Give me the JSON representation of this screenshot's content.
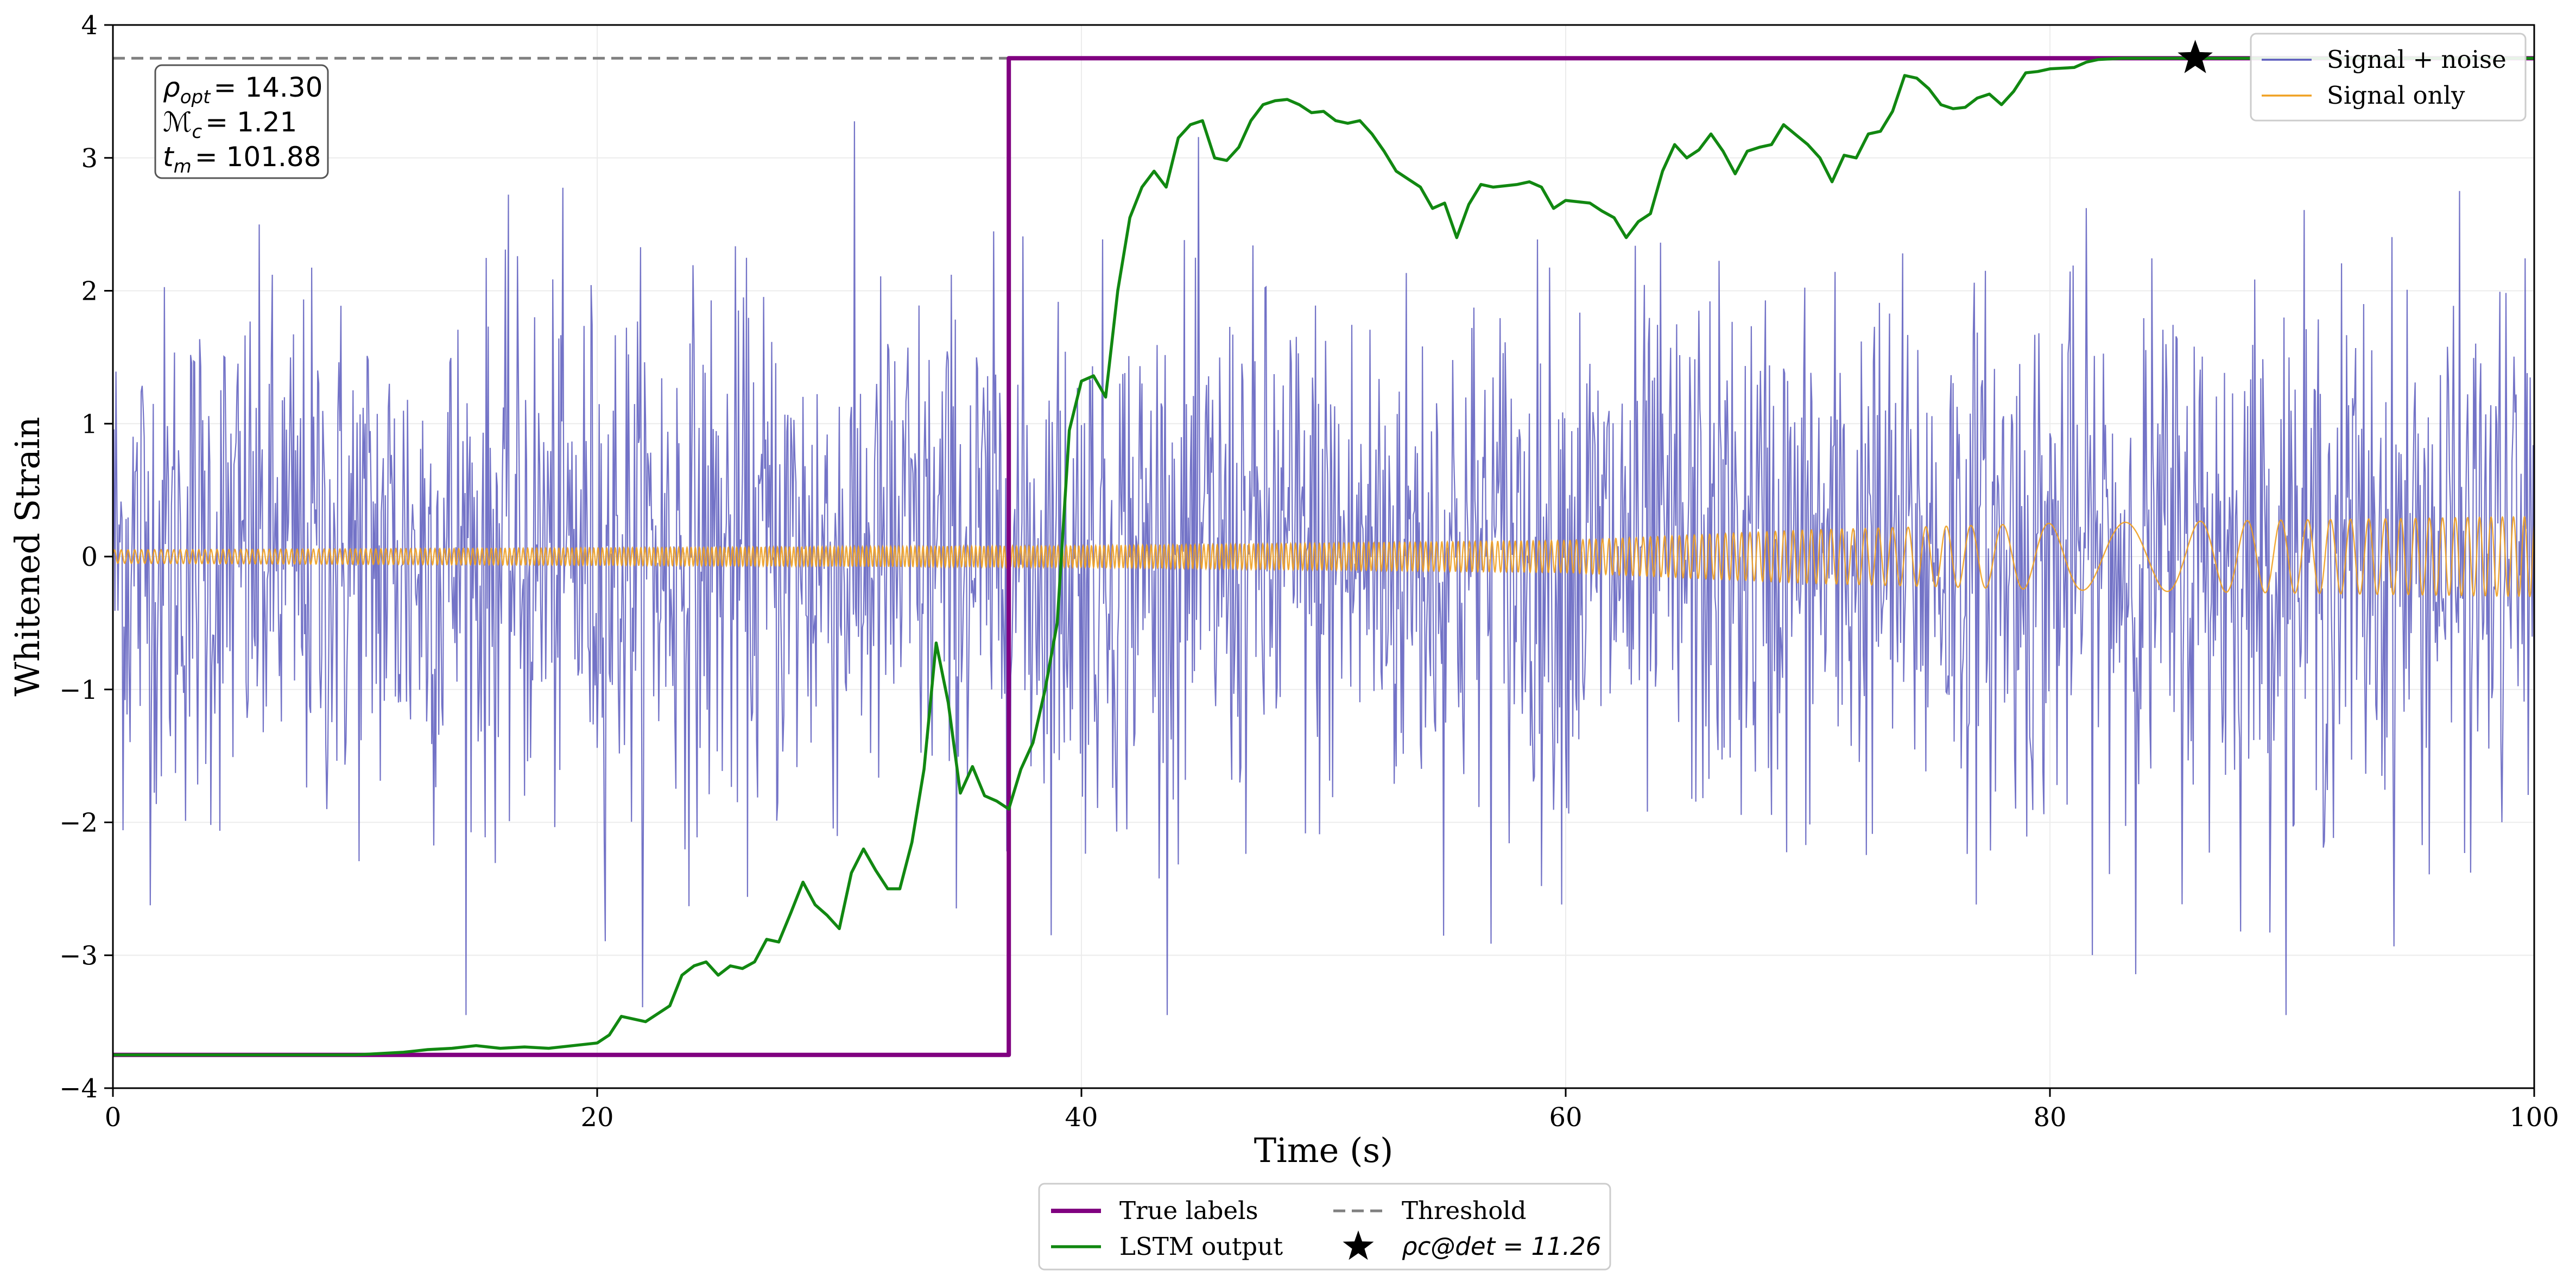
{
  "chart_data": {
    "type": "line",
    "xlabel": "Time (s)",
    "ylabel": "Whitened Strain",
    "xlim": [
      0,
      100
    ],
    "ylim": [
      -4,
      4
    ],
    "x_ticks": [
      0,
      20,
      40,
      60,
      80,
      100
    ],
    "y_ticks": [
      -4,
      -3,
      -2,
      -1,
      0,
      1,
      2,
      3,
      4
    ],
    "y_tick_labels": [
      "−4",
      "−3",
      "−2",
      "−1",
      "0",
      "1",
      "2",
      "3",
      "4"
    ],
    "grid": true,
    "legend_upper": {
      "placement": "top-right",
      "entries": [
        "Signal + noise",
        "Signal only"
      ]
    },
    "legend_lower": {
      "placement": "below-center",
      "entries": [
        "True labels",
        "LSTM output",
        "Threshold",
        "ρc@det = 11.26"
      ]
    },
    "info_box": {
      "placement": "top-left",
      "lines": [
        {
          "symbol": "ρ",
          "sub": "opt",
          "value": "= 14.30"
        },
        {
          "symbol": "ℳ",
          "sub": "c",
          "value": "= 1.21"
        },
        {
          "symbol": "t",
          "sub": "m",
          "value": "= 101.88"
        }
      ]
    },
    "series": [
      {
        "name": "Signal + noise",
        "color": "#5b5bbd",
        "kind": "noisy",
        "approx_std": 1.0,
        "approx_range": [
          -3.45,
          3.3
        ]
      },
      {
        "name": "Signal only",
        "color": "#f0a020",
        "kind": "chirp",
        "amplitude_envelope": [
          [
            0,
            0.05
          ],
          [
            40,
            0.08
          ],
          [
            60,
            0.12
          ],
          [
            70,
            0.2
          ],
          [
            80,
            0.25
          ],
          [
            100,
            0.3
          ]
        ]
      },
      {
        "name": "True labels",
        "color": "#800080",
        "kind": "step",
        "points": [
          [
            0,
            -3.75
          ],
          [
            37,
            -3.75
          ],
          [
            37,
            3.75
          ],
          [
            100,
            3.75
          ]
        ]
      },
      {
        "name": "LSTM output",
        "color": "#118811",
        "kind": "line",
        "points": [
          [
            0,
            -3.75
          ],
          [
            5,
            -3.75
          ],
          [
            10,
            -3.75
          ],
          [
            12,
            -3.73
          ],
          [
            13,
            -3.71
          ],
          [
            14,
            -3.7
          ],
          [
            15,
            -3.68
          ],
          [
            16,
            -3.7
          ],
          [
            17,
            -3.69
          ],
          [
            18,
            -3.7
          ],
          [
            19,
            -3.68
          ],
          [
            20,
            -3.66
          ],
          [
            20.5,
            -3.6
          ],
          [
            21,
            -3.46
          ],
          [
            22,
            -3.5
          ],
          [
            23,
            -3.38
          ],
          [
            23.5,
            -3.15
          ],
          [
            24,
            -3.08
          ],
          [
            24.5,
            -3.05
          ],
          [
            25,
            -3.15
          ],
          [
            25.5,
            -3.08
          ],
          [
            26,
            -3.1
          ],
          [
            26.5,
            -3.05
          ],
          [
            27,
            -2.88
          ],
          [
            27.5,
            -2.9
          ],
          [
            28,
            -2.68
          ],
          [
            28.5,
            -2.45
          ],
          [
            29,
            -2.62
          ],
          [
            29.5,
            -2.7
          ],
          [
            30,
            -2.8
          ],
          [
            30.5,
            -2.38
          ],
          [
            31,
            -2.2
          ],
          [
            31.5,
            -2.36
          ],
          [
            32,
            -2.5
          ],
          [
            32.5,
            -2.5
          ],
          [
            33,
            -2.15
          ],
          [
            33.5,
            -1.6
          ],
          [
            34,
            -0.65
          ],
          [
            34.5,
            -1.1
          ],
          [
            35,
            -1.78
          ],
          [
            35.5,
            -1.58
          ],
          [
            36,
            -1.8
          ],
          [
            36.5,
            -1.84
          ],
          [
            37,
            -1.9
          ],
          [
            37.5,
            -1.6
          ],
          [
            38,
            -1.4
          ],
          [
            38.5,
            -1.0
          ],
          [
            39,
            -0.5
          ],
          [
            39.5,
            0.95
          ],
          [
            40,
            1.32
          ],
          [
            40.5,
            1.36
          ],
          [
            41,
            1.2
          ],
          [
            41.5,
            2.0
          ],
          [
            42,
            2.55
          ],
          [
            42.5,
            2.78
          ],
          [
            43,
            2.9
          ],
          [
            43.5,
            2.78
          ],
          [
            44,
            3.15
          ],
          [
            44.5,
            3.25
          ],
          [
            45,
            3.28
          ],
          [
            45.5,
            3.0
          ],
          [
            46,
            2.98
          ],
          [
            46.5,
            3.08
          ],
          [
            47,
            3.28
          ],
          [
            47.5,
            3.4
          ],
          [
            48,
            3.43
          ],
          [
            48.5,
            3.44
          ],
          [
            49,
            3.4
          ],
          [
            49.5,
            3.34
          ],
          [
            50,
            3.35
          ],
          [
            50.5,
            3.28
          ],
          [
            51,
            3.26
          ],
          [
            51.5,
            3.28
          ],
          [
            52,
            3.18
          ],
          [
            52.5,
            3.05
          ],
          [
            53,
            2.9
          ],
          [
            53.5,
            2.84
          ],
          [
            54,
            2.78
          ],
          [
            54.5,
            2.62
          ],
          [
            55,
            2.66
          ],
          [
            55.5,
            2.4
          ],
          [
            56,
            2.65
          ],
          [
            56.5,
            2.8
          ],
          [
            57,
            2.78
          ],
          [
            58,
            2.8
          ],
          [
            58.5,
            2.82
          ],
          [
            59,
            2.78
          ],
          [
            59.5,
            2.62
          ],
          [
            60,
            2.68
          ],
          [
            61,
            2.66
          ],
          [
            61.5,
            2.6
          ],
          [
            62,
            2.55
          ],
          [
            62.5,
            2.4
          ],
          [
            63,
            2.52
          ],
          [
            63.5,
            2.58
          ],
          [
            64,
            2.9
          ],
          [
            64.5,
            3.1
          ],
          [
            65,
            3.0
          ],
          [
            65.5,
            3.06
          ],
          [
            66,
            3.18
          ],
          [
            66.5,
            3.05
          ],
          [
            67,
            2.88
          ],
          [
            67.5,
            3.05
          ],
          [
            68,
            3.08
          ],
          [
            68.5,
            3.1
          ],
          [
            69,
            3.25
          ],
          [
            70,
            3.1
          ],
          [
            70.5,
            3.0
          ],
          [
            71,
            2.82
          ],
          [
            71.5,
            3.02
          ],
          [
            72,
            3.0
          ],
          [
            72.5,
            3.18
          ],
          [
            73,
            3.2
          ],
          [
            73.5,
            3.35
          ],
          [
            74,
            3.62
          ],
          [
            74.5,
            3.6
          ],
          [
            75,
            3.52
          ],
          [
            75.5,
            3.4
          ],
          [
            76,
            3.37
          ],
          [
            76.5,
            3.38
          ],
          [
            77,
            3.45
          ],
          [
            77.5,
            3.48
          ],
          [
            78,
            3.4
          ],
          [
            78.5,
            3.5
          ],
          [
            79,
            3.64
          ],
          [
            79.5,
            3.65
          ],
          [
            80,
            3.67
          ],
          [
            81,
            3.68
          ],
          [
            81.5,
            3.72
          ],
          [
            82,
            3.74
          ],
          [
            83,
            3.75
          ],
          [
            84,
            3.75
          ],
          [
            86,
            3.75
          ],
          [
            90,
            3.75
          ],
          [
            100,
            3.75
          ]
        ]
      },
      {
        "name": "Threshold",
        "color": "#808080",
        "kind": "hline",
        "y": 3.75,
        "dash": true
      }
    ],
    "detection_marker": {
      "x": 86,
      "y": 3.75,
      "label": "ρc@det = 11.26",
      "shape": "star",
      "color": "#000000"
    }
  }
}
